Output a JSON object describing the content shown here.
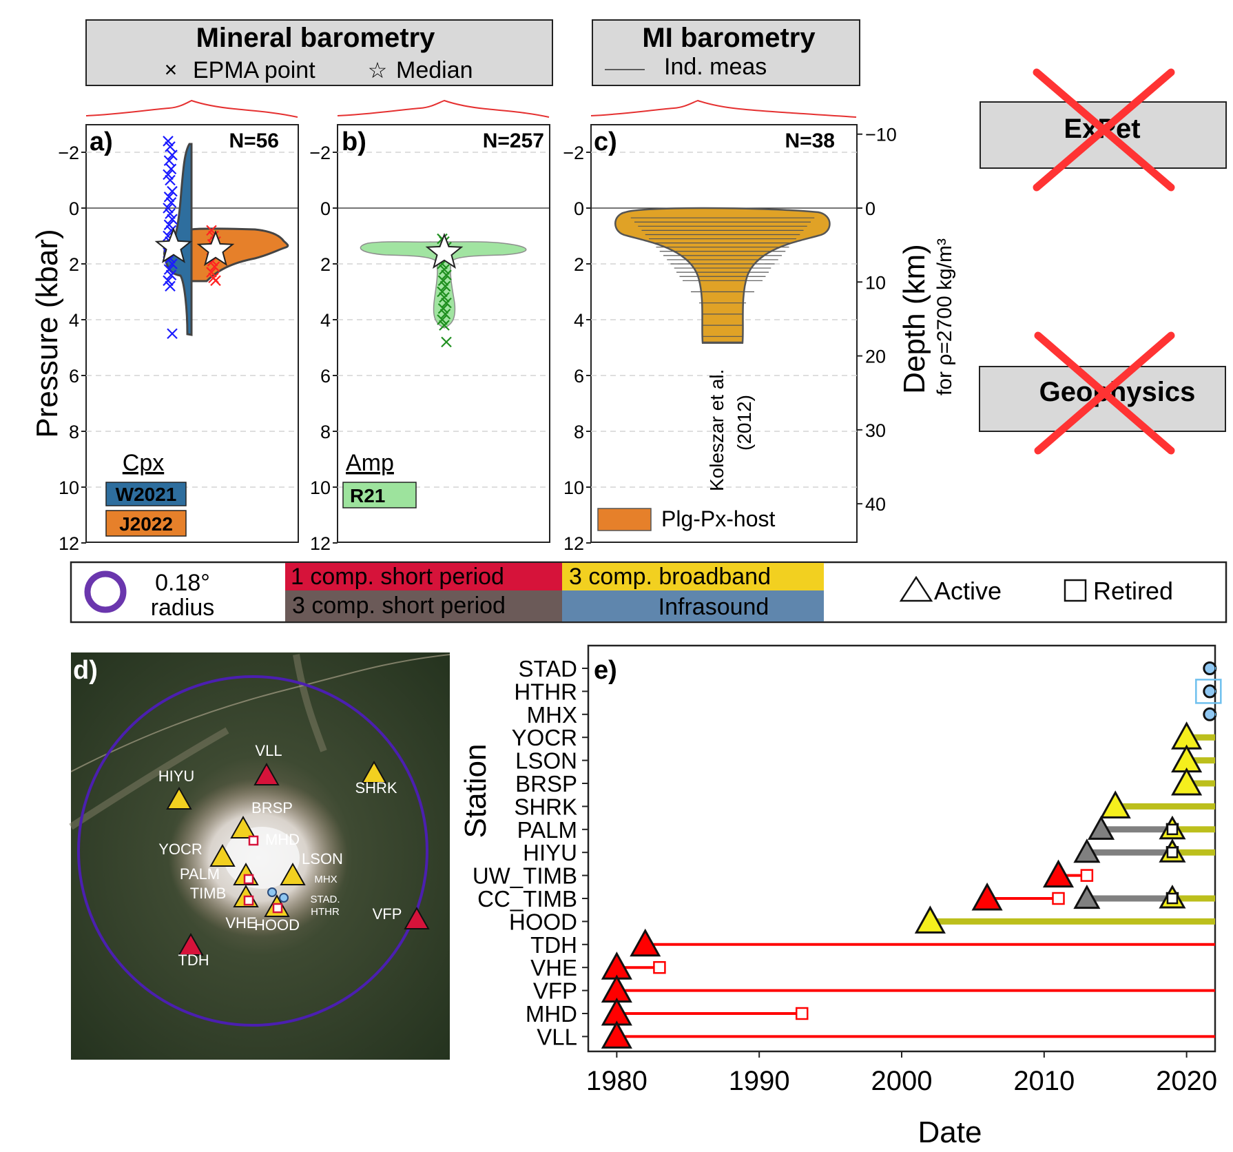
{
  "headers": {
    "mineral": {
      "title": "Mineral barometry",
      "legend_epma": "EPMA point",
      "legend_median": "Median"
    },
    "mi": {
      "title": "MI barometry",
      "legend_ind": "Ind. meas"
    },
    "expet": {
      "title": "ExPet"
    },
    "geophysics": {
      "title": "Geophysics"
    }
  },
  "panels": {
    "a": {
      "letter": "a)",
      "n": "N=56",
      "legend_title": "Cpx",
      "legend": [
        "W2021",
        "J2022"
      ]
    },
    "b": {
      "letter": "b)",
      "n": "N=257",
      "legend_title": "Amp",
      "legend": [
        "R21"
      ]
    },
    "c": {
      "letter": "c)",
      "n": "N=38",
      "legend": [
        "Plg-Px-host"
      ],
      "annotation_1": "Koleszar et al.",
      "annotation_2": "(2012)"
    }
  },
  "axes_top": {
    "ylabel": "Pressure (kbar)",
    "y_ticks": [
      "−2",
      "0",
      "2",
      "4",
      "6",
      "8",
      "10",
      "12"
    ],
    "depth_label": "Depth (km)",
    "depth_sublabel": "for ρ=2700 kg/m³",
    "depth_ticks": [
      "−10",
      "0",
      "10",
      "20",
      "30",
      "40"
    ]
  },
  "station_legend": {
    "radius_value": "0.18°",
    "radius_word": "radius",
    "types": [
      "1 comp. short period",
      "3 comp. broadband",
      "3 comp. short period",
      "Infrasound"
    ],
    "active": "Active",
    "retired": "Retired"
  },
  "map": {
    "letter": "d)",
    "labels": [
      "VLL",
      "HIYU",
      "SHRK",
      "BRSP",
      "MHD",
      "YOCR",
      "LSON",
      "MHX",
      "PALM",
      "STAD.",
      "HTHR",
      "TIMB",
      "VHE",
      "HOOD",
      "VFP",
      "TDH"
    ]
  },
  "colors": {
    "one_comp_sp": "#d6133a",
    "three_comp_bb": "#f2d020",
    "three_comp_sp": "#6b5a58",
    "infrasound": "#5f86ad",
    "cpx_w2021": "#2e6e9e",
    "cpx_j2022": "#e6802a",
    "amp_r21": "#9de39d",
    "mi_host": "#e0a226",
    "radius_circle": "#6a36ad"
  },
  "chart_data": [
    {
      "type": "violin",
      "panel": "a",
      "title": "",
      "ylabel": "Pressure (kbar)",
      "ylim": [
        12,
        -3
      ],
      "series": [
        {
          "name": "W2021",
          "median": 1.4,
          "points": [
            -2.4,
            -2.2,
            -1.9,
            -1.7,
            -1.4,
            -1.2,
            -1.0,
            -0.6,
            -0.4,
            -0.2,
            0.0,
            0.2,
            0.4,
            0.6,
            0.8,
            1.0,
            1.2,
            1.3,
            1.4,
            1.5,
            1.6,
            1.8,
            2.0,
            2.2,
            2.4,
            2.6,
            2.8,
            4.5
          ]
        },
        {
          "name": "J2022",
          "median": 1.5,
          "points": [
            0.8,
            1.0,
            1.2,
            1.3,
            1.4,
            1.5,
            1.6,
            1.7,
            1.9,
            2.1,
            2.3,
            2.5,
            2.6
          ]
        }
      ]
    },
    {
      "type": "violin",
      "panel": "b",
      "title": "",
      "ylim": [
        12,
        -3
      ],
      "series": [
        {
          "name": "R21",
          "median": 1.6,
          "points": [
            1.1,
            1.2,
            1.4,
            1.6,
            1.8,
            2.0,
            2.2,
            2.4,
            2.6,
            2.8,
            3.0,
            3.2,
            3.4,
            3.6,
            3.8,
            4.0,
            4.2,
            4.8
          ]
        }
      ]
    },
    {
      "type": "violin",
      "panel": "c",
      "title": "",
      "ylim": [
        12,
        -3
      ],
      "series": [
        {
          "name": "Plg-Px-host",
          "range": [
            0.1,
            4.9
          ],
          "lines": [
            0.35,
            0.5,
            0.65,
            0.8,
            0.95,
            1.1,
            1.25,
            1.4,
            1.55,
            1.7,
            1.85,
            2.0,
            2.15,
            2.3,
            2.45,
            2.6,
            3.0,
            3.4,
            3.8,
            4.2,
            4.6,
            4.85
          ]
        }
      ]
    },
    {
      "type": "timeline",
      "panel": "e",
      "title": "",
      "xlabel": "Date",
      "ylabel": "Station",
      "xlim": [
        1978,
        2022
      ],
      "x_ticks": [
        1980,
        1990,
        2000,
        2010,
        2020
      ],
      "stations": [
        "STAD",
        "HTHR",
        "MHX",
        "YOCR",
        "LSON",
        "BRSP",
        "SHRK",
        "PALM",
        "HIYU",
        "UW_TIMB",
        "CC_TIMB",
        "HOOD",
        "TDH",
        "VHE",
        "VFP",
        "MHD",
        "VLL"
      ],
      "series": [
        {
          "station": "STAD",
          "kind": "Infrasound",
          "start": 2021.0,
          "end": 2022.0
        },
        {
          "station": "HTHR",
          "kind": "Infrasound",
          "start": 2021.0,
          "end": 2022.0
        },
        {
          "station": "MHX",
          "kind": "Infrasound",
          "start": 2021.0,
          "end": 2022.0
        },
        {
          "station": "YOCR",
          "kind": "3 comp. broadband",
          "start": 2020.0,
          "end": 2022.0
        },
        {
          "station": "LSON",
          "kind": "3 comp. broadband",
          "start": 2020.0,
          "end": 2022.0
        },
        {
          "station": "BRSP",
          "kind": "3 comp. broadband",
          "start": 2020.0,
          "end": 2022.0
        },
        {
          "station": "SHRK",
          "kind": "3 comp. broadband",
          "start": 2015.0,
          "end": 2022.0
        },
        {
          "station": "PALM",
          "kind": "3 comp. short period",
          "start": 2014.0,
          "end": 2019.0
        },
        {
          "station": "PALM",
          "kind": "3 comp. broadband",
          "start": 2019.0,
          "end": 2022.0
        },
        {
          "station": "HIYU",
          "kind": "3 comp. short period",
          "start": 2013.0,
          "end": 2019.0
        },
        {
          "station": "HIYU",
          "kind": "3 comp. broadband",
          "start": 2019.0,
          "end": 2022.0
        },
        {
          "station": "UW_TIMB",
          "kind": "1 comp. short period",
          "start": 2011.0,
          "end": 2013.0
        },
        {
          "station": "CC_TIMB",
          "kind": "1 comp. short period",
          "start": 2006.0,
          "end": 2011.0
        },
        {
          "station": "CC_TIMB",
          "kind": "3 comp. short period",
          "start": 2013.0,
          "end": 2019.0
        },
        {
          "station": "CC_TIMB",
          "kind": "3 comp. broadband",
          "start": 2019.0,
          "end": 2022.0
        },
        {
          "station": "HOOD",
          "kind": "3 comp. broadband",
          "start": 2002.0,
          "end": 2022.0
        },
        {
          "station": "TDH",
          "kind": "1 comp. short period",
          "start": 1982.0,
          "end": 2022.0
        },
        {
          "station": "VHE",
          "kind": "1 comp. short period",
          "start": 1980.0,
          "end": 1983.0
        },
        {
          "station": "VFP",
          "kind": "1 comp. short period",
          "start": 1980.0,
          "end": 2022.0
        },
        {
          "station": "MHD",
          "kind": "1 comp. short period",
          "start": 1980.0,
          "end": 1993.0
        },
        {
          "station": "VLL",
          "kind": "1 comp. short period",
          "start": 1980.0,
          "end": 2022.0
        }
      ],
      "retired": [
        {
          "station": "PALM",
          "year": 2019.0,
          "kind": "3 comp. short period"
        },
        {
          "station": "HIYU",
          "year": 2019.0,
          "kind": "3 comp. short period"
        },
        {
          "station": "UW_TIMB",
          "year": 2013.0,
          "kind": "1 comp. short period"
        },
        {
          "station": "CC_TIMB",
          "year": 2011.0,
          "kind": "1 comp. short period"
        },
        {
          "station": "CC_TIMB",
          "year": 2019.0,
          "kind": "3 comp. short period"
        },
        {
          "station": "VHE",
          "year": 1983.0,
          "kind": "1 comp. short period"
        },
        {
          "station": "MHD",
          "year": 1993.0,
          "kind": "1 comp. short period"
        }
      ]
    }
  ]
}
